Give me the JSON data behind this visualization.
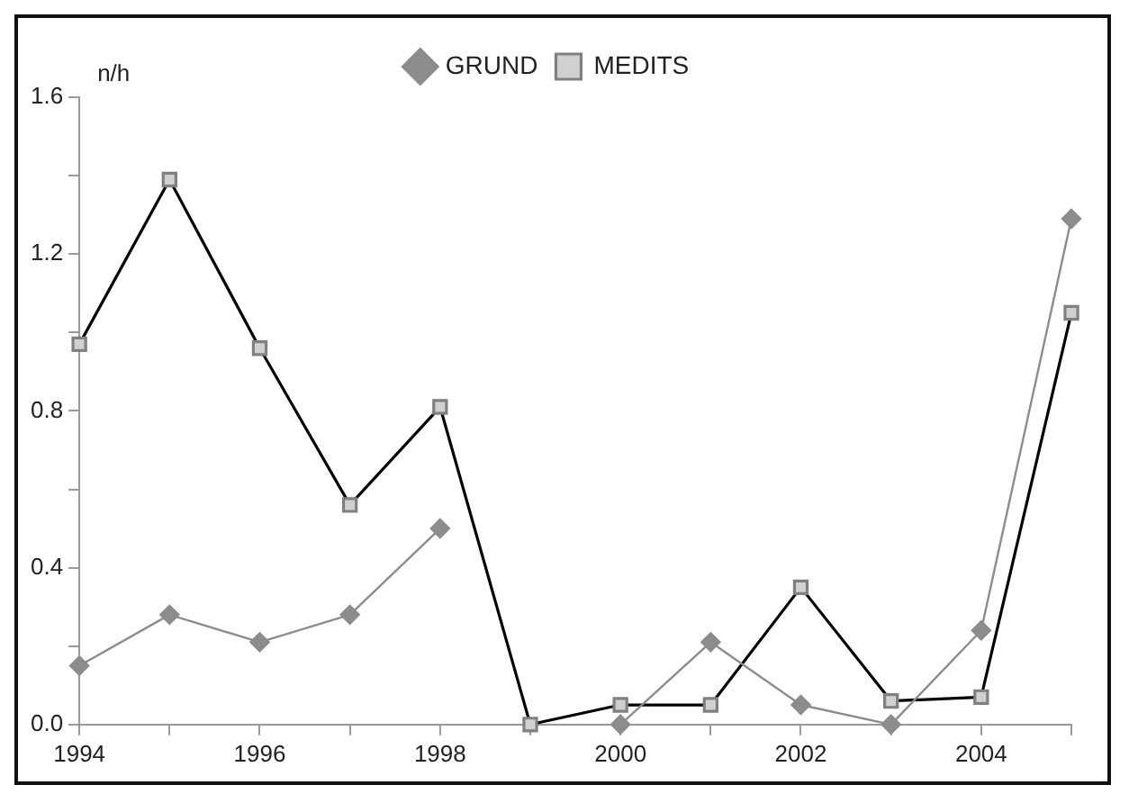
{
  "chart_data": {
    "type": "line",
    "ylabel": "n/h",
    "x": [
      1994,
      1995,
      1996,
      1997,
      1998,
      1999,
      2000,
      2001,
      2002,
      2003,
      2004,
      2005
    ],
    "xlim": [
      1994,
      2005
    ],
    "xticks": [
      1994,
      {
        "value": 1995,
        "label": null
      },
      1996,
      {
        "value": 1997,
        "label": null
      },
      1998,
      {
        "value": 1999,
        "label": null
      },
      2000,
      {
        "value": 2001,
        "label": null
      },
      2002,
      {
        "value": 2003,
        "label": null
      },
      2004,
      {
        "value": 2005,
        "label": null
      }
    ],
    "ylim": [
      0,
      1.6
    ],
    "yticks": [
      {
        "value": 0,
        "label": "0.0"
      },
      {
        "value": 0.2,
        "label": null
      },
      0.4,
      {
        "value": 0.6,
        "label": null
      },
      0.8,
      {
        "value": 1.0,
        "label": null
      },
      1.2,
      {
        "value": 1.4,
        "label": null
      },
      1.6
    ],
    "grid": false,
    "legend": "top",
    "series": [
      {
        "name": "GRUND",
        "color": "#8c8c8c",
        "marker": "diamond",
        "values": [
          0.15,
          0.28,
          0.21,
          0.28,
          0.5,
          null,
          0.0,
          0.21,
          0.05,
          0.0,
          0.24,
          1.29
        ]
      },
      {
        "name": "MEDITS",
        "color": "#000000",
        "marker": "square",
        "values": [
          0.97,
          1.39,
          0.96,
          0.56,
          0.81,
          0.0,
          0.05,
          0.05,
          0.35,
          0.06,
          0.07,
          1.05
        ]
      }
    ]
  }
}
